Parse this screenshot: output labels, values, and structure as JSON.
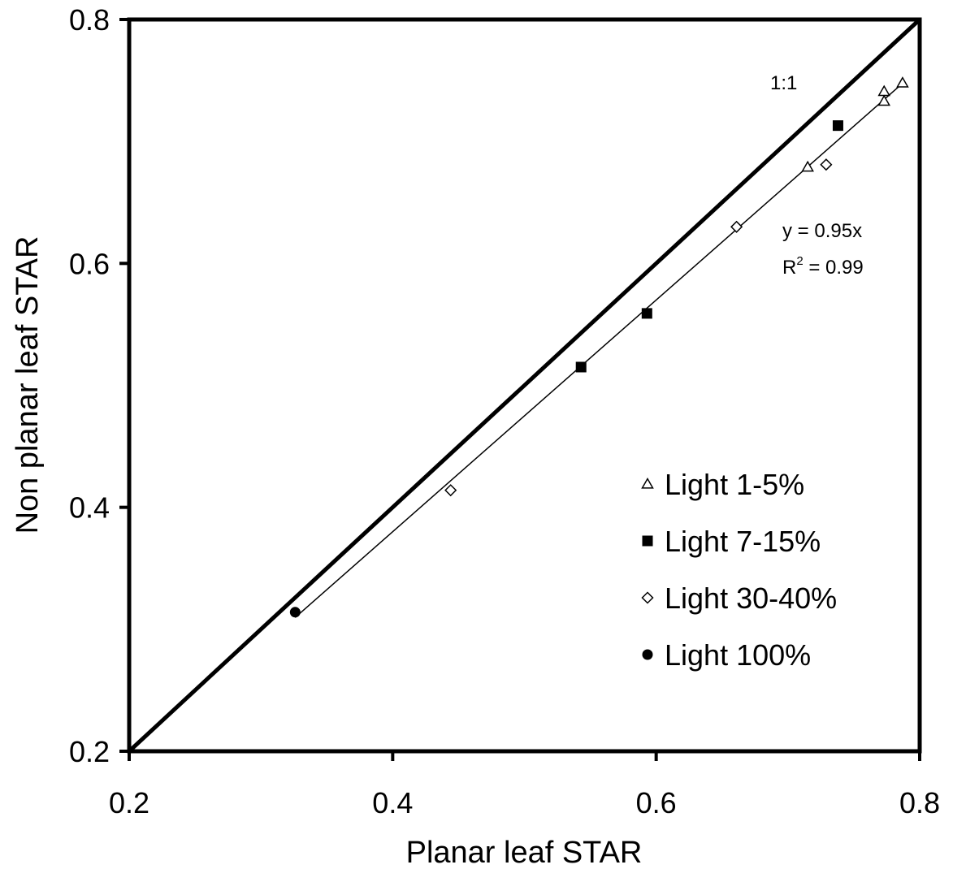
{
  "chart_data": {
    "type": "scatter",
    "title": "",
    "xlabel": "Planar leaf STAR",
    "ylabel": "Non planar leaf STAR",
    "xlim": [
      0.2,
      0.8
    ],
    "ylim": [
      0.2,
      0.8
    ],
    "x_ticks": [
      "0.2",
      "0.4",
      "0.6",
      "0.8"
    ],
    "y_ticks": [
      "0.2",
      "0.4",
      "0.6",
      "0.8"
    ],
    "grid": false,
    "legend_position": "bottom-right",
    "series": [
      {
        "name": "Light 1-5%",
        "marker": "open-triangle",
        "points": [
          [
            0.715,
            0.679
          ],
          [
            0.773,
            0.741
          ],
          [
            0.773,
            0.733
          ],
          [
            0.787,
            0.748
          ]
        ]
      },
      {
        "name": "Light 7-15%",
        "marker": "filled-square",
        "points": [
          [
            0.543,
            0.515
          ],
          [
            0.593,
            0.559
          ],
          [
            0.738,
            0.713
          ]
        ]
      },
      {
        "name": "Light 30-40%",
        "marker": "open-diamond",
        "points": [
          [
            0.444,
            0.414
          ],
          [
            0.661,
            0.63
          ],
          [
            0.729,
            0.681
          ]
        ]
      },
      {
        "name": "Light 100%",
        "marker": "filled-circle",
        "points": [
          [
            0.326,
            0.314
          ]
        ]
      }
    ],
    "reference_line": {
      "label": "1:1",
      "from": [
        0.2,
        0.2
      ],
      "to": [
        0.8,
        0.8
      ]
    },
    "fit_line": {
      "slope": 0.95,
      "from_x": 0.326,
      "to_x": 0.787
    },
    "equation": "y = 0.95x",
    "r2_prefix": "R",
    "r2_exponent": "2",
    "r2_value": " = 0.99"
  }
}
